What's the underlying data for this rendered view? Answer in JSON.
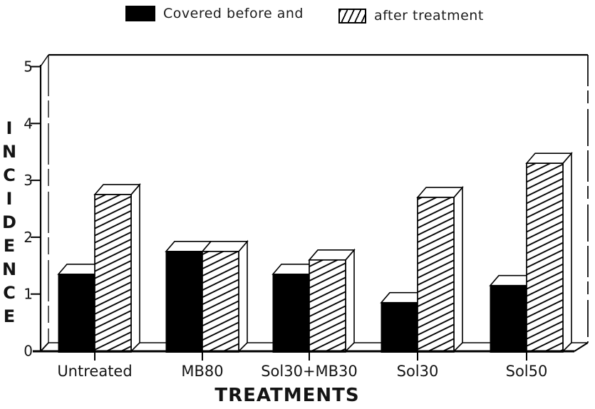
{
  "chart_data": {
    "type": "bar",
    "style": "3d-monochrome",
    "categories": [
      "Untreated",
      "MB80",
      "Sol30+MB30",
      "Sol30",
      "Sol50"
    ],
    "series": [
      {
        "name": "Covered before and",
        "pattern": "solid-black",
        "values": [
          1.35,
          1.75,
          1.35,
          0.85,
          1.15
        ]
      },
      {
        "name": "after treatment",
        "pattern": "diagonal-hatch",
        "values": [
          2.75,
          1.75,
          1.6,
          2.7,
          3.3
        ]
      }
    ],
    "title": "",
    "xlabel": "TREATMENTS",
    "ylabel": "INCIDENCE",
    "ylim": [
      0,
      5
    ],
    "yticks": [
      0,
      1,
      2,
      3,
      4,
      5
    ],
    "grid": false,
    "legend_position": "top"
  },
  "colors": {
    "foreground": "#000000",
    "background": "#ffffff"
  }
}
